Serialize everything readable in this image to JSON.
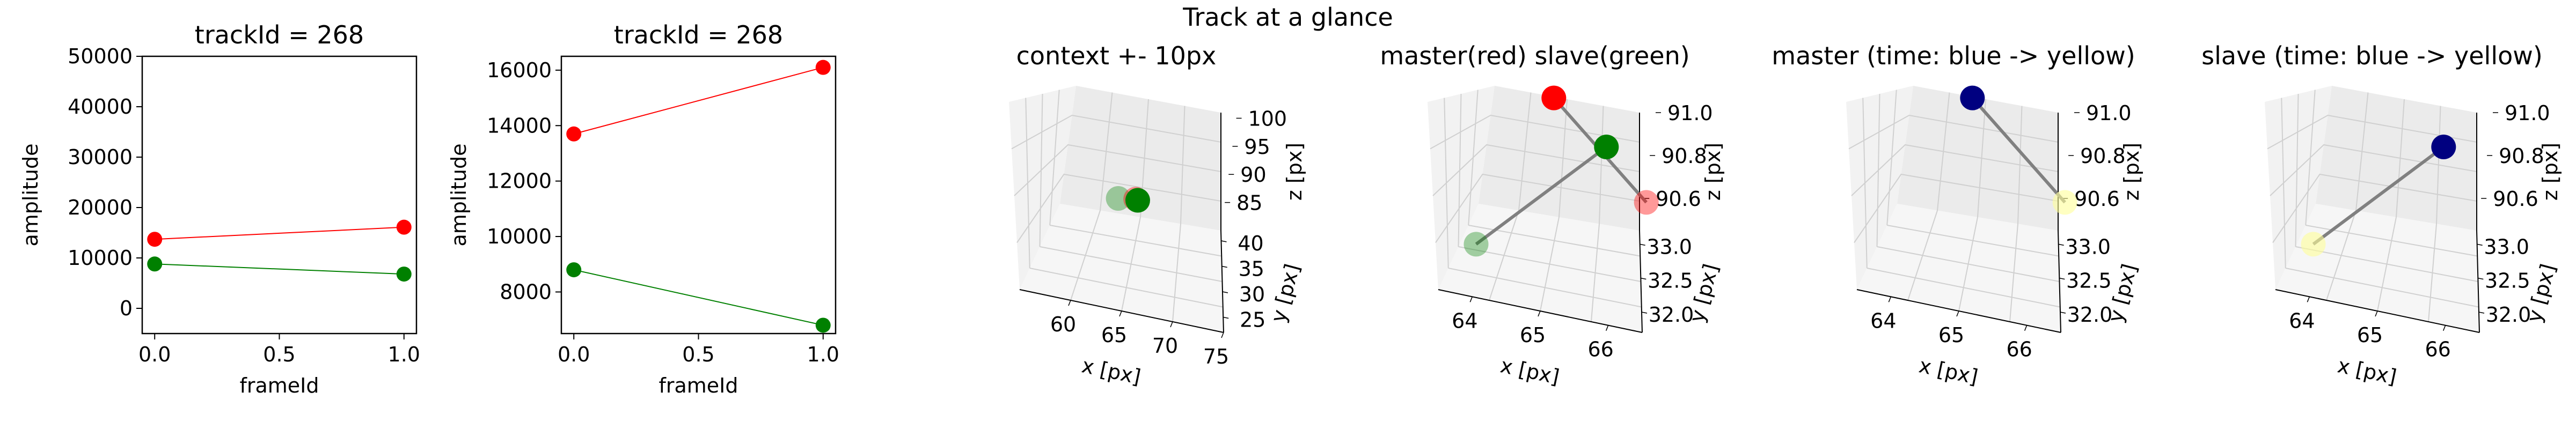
{
  "figure": {
    "suptitle": "Track at a glance"
  },
  "chart_data": [
    {
      "type": "line",
      "title": "trackId = 268",
      "xlabel": "frameId",
      "ylabel": "amplitude",
      "xlim": [
        -0.05,
        1.05
      ],
      "ylim": [
        -5000,
        50000
      ],
      "x_ticks": [
        "0.0",
        "0.5",
        "1.0"
      ],
      "y_ticks": [
        "0",
        "10000",
        "20000",
        "30000",
        "40000",
        "50000"
      ],
      "series": [
        {
          "color": "#ff0000",
          "x": [
            0,
            1
          ],
          "y": [
            13700,
            16100
          ]
        },
        {
          "color": "#008000",
          "x": [
            0,
            1
          ],
          "y": [
            8800,
            6800
          ]
        }
      ]
    },
    {
      "type": "line",
      "title": "trackId = 268",
      "xlabel": "frameId",
      "ylabel": "amplitude",
      "xlim": [
        -0.05,
        1.05
      ],
      "ylim": [
        6500,
        16500
      ],
      "x_ticks": [
        "0.0",
        "0.5",
        "1.0"
      ],
      "y_ticks": [
        "8000",
        "10000",
        "12000",
        "14000",
        "16000"
      ],
      "series": [
        {
          "color": "#ff0000",
          "x": [
            0,
            1
          ],
          "y": [
            13700,
            16100
          ]
        },
        {
          "color": "#008000",
          "x": [
            0,
            1
          ],
          "y": [
            8800,
            6800
          ]
        }
      ]
    },
    {
      "type": "scatter",
      "title": "context +- 10px",
      "xlabel": "x [px]",
      "ylabel": "y [px]",
      "zlabel": "z [px]",
      "xlim": [
        55,
        75
      ],
      "ylim": [
        22,
        42
      ],
      "zlim": [
        80,
        101
      ],
      "x_ticks": [
        "60",
        "65",
        "70",
        "75"
      ],
      "y_ticks": [
        "25",
        "30",
        "35",
        "40"
      ],
      "z_ticks": [
        "85",
        "90",
        "95",
        "100"
      ],
      "points": [
        {
          "x": 64.0,
          "y": 32.0,
          "z": 90.6,
          "color": "#008000",
          "alpha": 0.35
        },
        {
          "x": 65.7,
          "y": 32.3,
          "z": 90.85,
          "color": "#ff0000",
          "alpha": 0.4
        },
        {
          "x": 65.9,
          "y": 32.2,
          "z": 90.8,
          "color": "#008000",
          "alpha": 1
        }
      ]
    },
    {
      "type": "scatter",
      "title": "master(red) slave(green)",
      "xlabel": "x [px]",
      "ylabel": "y [px]",
      "zlabel": "z [px]",
      "xlim": [
        63.5,
        66.5
      ],
      "ylim": [
        31.7,
        33.2
      ],
      "zlim": [
        90.45,
        91.0
      ],
      "x_ticks": [
        "64",
        "65",
        "66"
      ],
      "y_ticks": [
        "32.0",
        "32.5",
        "33.0"
      ],
      "z_ticks": [
        "90.6",
        "90.8",
        "91.0"
      ],
      "points": [
        {
          "x": 64.0,
          "y": 32.0,
          "z": 90.6,
          "color": "#008000",
          "alpha": 0.35
        },
        {
          "x": 65.8,
          "y": 32.8,
          "z": 90.92,
          "color": "#008000",
          "alpha": 1
        },
        {
          "x": 65.0,
          "y": 33.1,
          "z": 91.0,
          "color": "#ff0000",
          "alpha": 1
        },
        {
          "x": 66.4,
          "y": 32.3,
          "z": 90.86,
          "color": "#ff0000",
          "alpha": 0.4
        }
      ],
      "tracks": [
        {
          "from": [
            64.0,
            32.0,
            90.6
          ],
          "to": [
            65.8,
            32.8,
            90.92
          ]
        },
        {
          "from": [
            65.0,
            33.1,
            91.0
          ],
          "to": [
            66.4,
            32.3,
            90.86
          ]
        }
      ]
    },
    {
      "type": "scatter",
      "title": "master (time: blue -> yellow)",
      "xlabel": "x [px]",
      "ylabel": "y [px]",
      "zlabel": "z [px]",
      "xlim": [
        63.5,
        66.5
      ],
      "ylim": [
        31.7,
        33.2
      ],
      "zlim": [
        90.45,
        91.0
      ],
      "x_ticks": [
        "64",
        "65",
        "66"
      ],
      "y_ticks": [
        "32.0",
        "32.5",
        "33.0"
      ],
      "z_ticks": [
        "90.6",
        "90.8",
        "91.0"
      ],
      "points": [
        {
          "x": 65.0,
          "y": 33.1,
          "z": 91.0,
          "color": "#000080",
          "alpha": 1
        },
        {
          "x": 66.4,
          "y": 32.3,
          "z": 90.86,
          "color": "#ffff99",
          "alpha": 0.6
        }
      ],
      "tracks": [
        {
          "from": [
            65.0,
            33.1,
            91.0
          ],
          "to": [
            66.4,
            32.3,
            90.86
          ]
        }
      ]
    },
    {
      "type": "scatter",
      "title": "slave (time: blue -> yellow)",
      "xlabel": "x [px]",
      "ylabel": "y [px]",
      "zlabel": "z [px]",
      "xlim": [
        63.5,
        66.5
      ],
      "ylim": [
        31.7,
        33.2
      ],
      "zlim": [
        90.45,
        91.0
      ],
      "x_ticks": [
        "64",
        "65",
        "66"
      ],
      "y_ticks": [
        "32.0",
        "32.5",
        "33.0"
      ],
      "z_ticks": [
        "90.6",
        "90.8",
        "91.0"
      ],
      "points": [
        {
          "x": 64.0,
          "y": 32.0,
          "z": 90.6,
          "color": "#ffff99",
          "alpha": 0.6
        },
        {
          "x": 65.8,
          "y": 32.8,
          "z": 90.92,
          "color": "#000080",
          "alpha": 1
        }
      ],
      "tracks": [
        {
          "from": [
            64.0,
            32.0,
            90.6
          ],
          "to": [
            65.8,
            32.8,
            90.92
          ]
        }
      ]
    }
  ]
}
